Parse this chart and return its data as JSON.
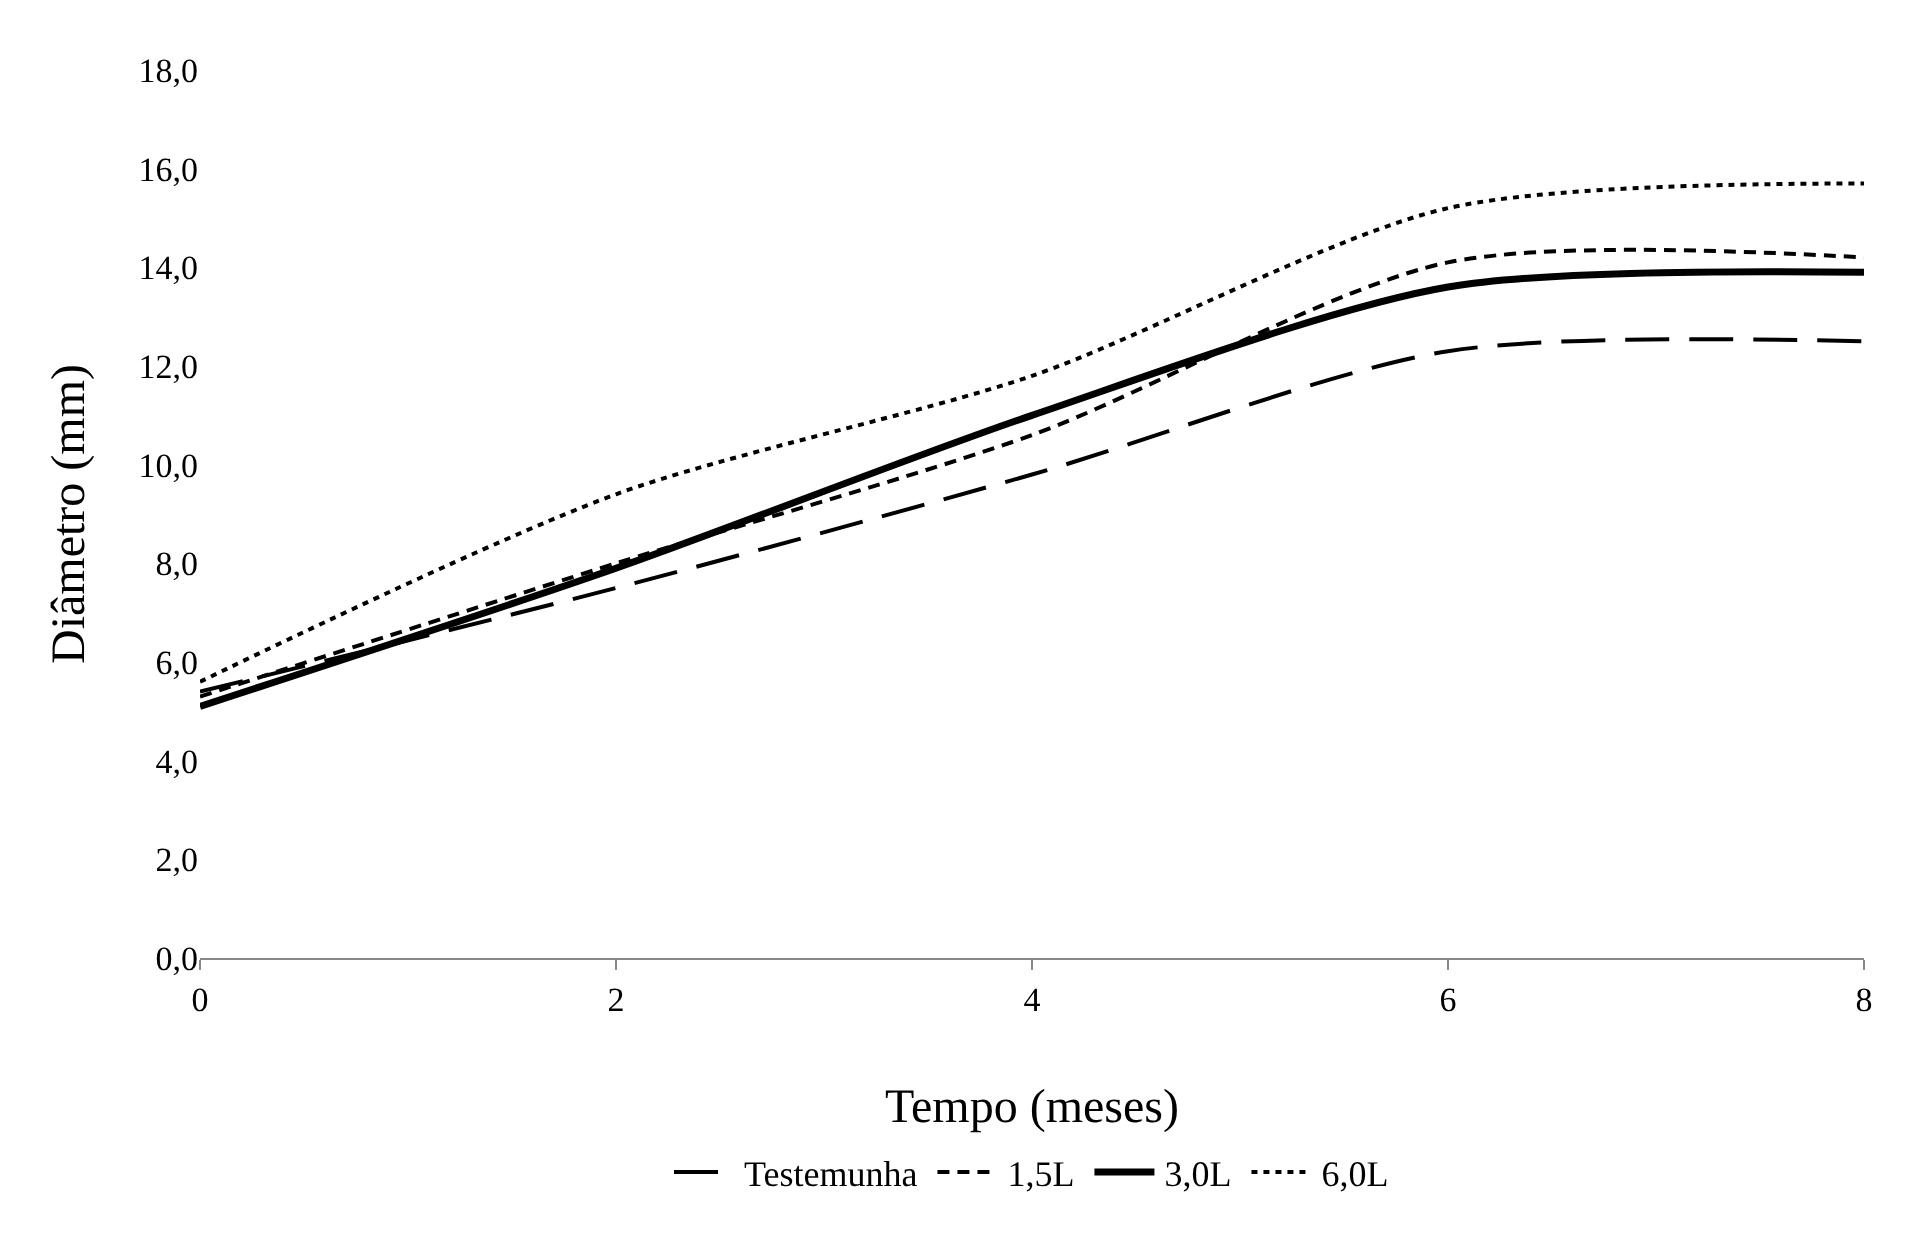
{
  "chart_data": {
    "type": "line",
    "xlabel": "Tempo (meses)",
    "ylabel": "Diâmetro (mm)",
    "x": [
      0,
      2,
      4,
      6,
      8
    ],
    "series": [
      {
        "name": "Testemunha",
        "color": "#000000",
        "line_style": "dashed",
        "values": [
          5.4,
          7.5,
          9.8,
          12.3,
          12.5
        ]
      },
      {
        "name": "1,5L",
        "color": "#000000",
        "line_style": "dashed",
        "values": [
          5.3,
          8.0,
          10.6,
          14.1,
          14.2
        ]
      },
      {
        "name": "3,0L",
        "color": "#000000",
        "line_style": "solid",
        "values": [
          5.1,
          7.9,
          11.0,
          13.6,
          13.9
        ]
      },
      {
        "name": "6,0L",
        "color": "#000000",
        "line_style": "dotted",
        "values": [
          5.6,
          9.4,
          11.8,
          15.2,
          15.7
        ]
      }
    ],
    "xlim": [
      0,
      8
    ],
    "xticks": [
      0,
      2,
      4,
      6,
      8
    ],
    "ylim": [
      0,
      18
    ],
    "yticks": [
      {
        "value": 0,
        "label": "0,0"
      },
      {
        "value": 2,
        "label": "2,0"
      },
      {
        "value": 4,
        "label": "4,0"
      },
      {
        "value": 6,
        "label": "6,0"
      },
      {
        "value": 8,
        "label": "8,0"
      },
      {
        "value": 10,
        "label": "10,0"
      },
      {
        "value": 12,
        "label": "12,0"
      },
      {
        "value": 14,
        "label": "14,0"
      },
      {
        "value": 16,
        "label": "16,0"
      },
      {
        "value": 18,
        "label": "18,0"
      }
    ],
    "grid": false,
    "legend": "bottom",
    "marker": "none"
  }
}
